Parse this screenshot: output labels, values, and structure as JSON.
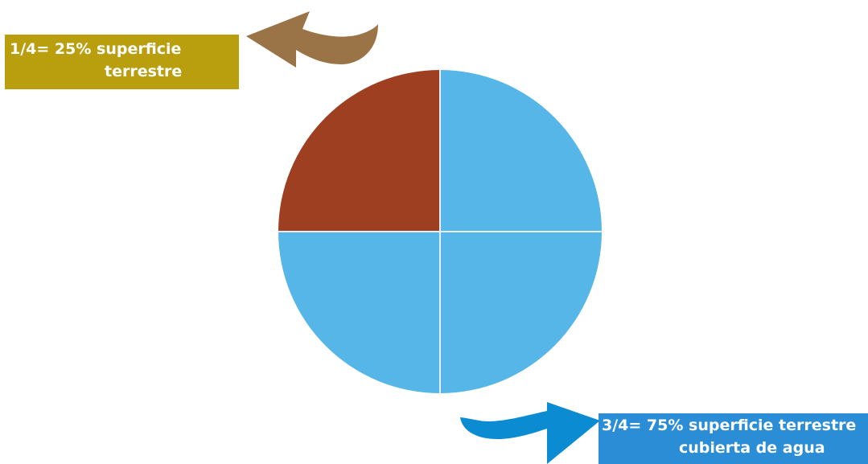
{
  "chart_data": {
    "type": "pie",
    "slices": [
      {
        "label": "1/4= 25% superficie terrestre",
        "value": 25,
        "color": "#9E3F22"
      },
      {
        "label": "3/4= 75% superficie terrestre cubierta de agua",
        "value": 75,
        "color": "#57B6E8"
      }
    ],
    "quarters": [
      {
        "value": 25,
        "color": "#57B6E8"
      },
      {
        "value": 25,
        "color": "#57B6E8"
      },
      {
        "value": 25,
        "color": "#57B6E8"
      },
      {
        "value": 25,
        "color": "#9E3F22"
      }
    ],
    "divider_color": "#E4EEF4"
  },
  "labels": {
    "land": {
      "line1": "1/4= 25% superficie",
      "line2": "terrestre",
      "bg_color": "#B99E0E",
      "arrow_color": "#9A7446"
    },
    "water": {
      "line1": "3/4= 75% superficie terrestre",
      "line2": "cubierta de agua",
      "bg_color": "#2A8DD6",
      "arrow_color": "#0B8CD2"
    }
  }
}
